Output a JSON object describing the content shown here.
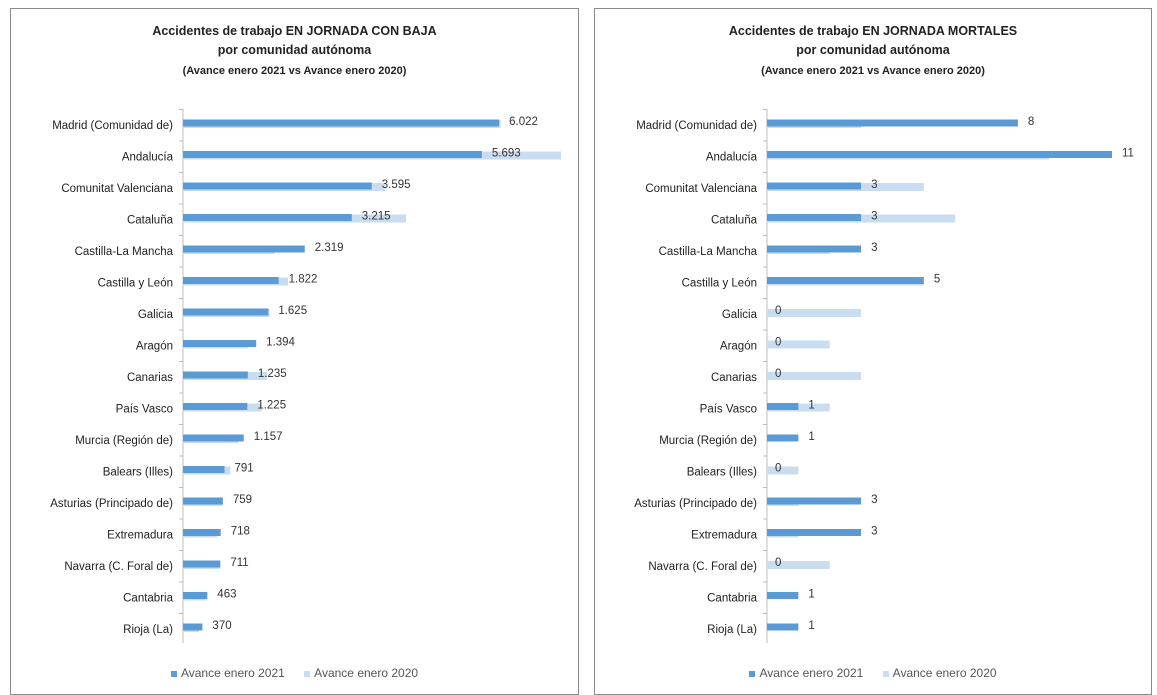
{
  "colors": {
    "series_2021": "#5b9bd5",
    "series_2020": "#c9dcf0"
  },
  "chart_data": [
    {
      "type": "bar",
      "orientation": "horizontal",
      "title": "Accidentes de trabajo EN JORNADA CON BAJA",
      "title_line2": "por comunidad autónoma",
      "subtitle": "(Avance enero 2021 vs Avance enero 2020)",
      "categories": [
        "Madrid (Comunidad de)",
        "Andalucía",
        "Comunitat Valenciana",
        "Cataluña",
        "Castilla-La Mancha",
        "Castilla y León",
        "Galicia",
        "Aragón",
        "Canarias",
        "País Vasco",
        "Murcia (Región de)",
        "Balears (Illes)",
        "Asturias (Principado de)",
        "Extremadura",
        "Navarra (C. Foral de)",
        "Cantabria",
        "Rioja (La)"
      ],
      "series": [
        {
          "name": "Avance enero 2021",
          "values": [
            6022,
            5693,
            3595,
            3215,
            2319,
            1822,
            1625,
            1394,
            1235,
            1225,
            1157,
            791,
            759,
            718,
            711,
            463,
            370
          ]
        },
        {
          "name": "Avance enero 2020",
          "values": [
            6050,
            7200,
            3850,
            4250,
            1750,
            2000,
            1650,
            1250,
            1600,
            1500,
            1050,
            900,
            750,
            650,
            700,
            450,
            300
          ]
        }
      ],
      "data_labels": [
        "6.022",
        "5.693",
        "3.595",
        "3.215",
        "2.319",
        "1.822",
        "1.625",
        "1.394",
        "1.235",
        "1.225",
        "1.157",
        "791",
        "759",
        "718",
        "711",
        "463",
        "370"
      ],
      "xlim": [
        0,
        7200
      ],
      "grid": false,
      "legend_position": "bottom"
    },
    {
      "type": "bar",
      "orientation": "horizontal",
      "title": "Accidentes de trabajo EN JORNADA MORTALES",
      "title_line2": "por comunidad autónoma",
      "subtitle": "(Avance enero 2021 vs Avance enero 2020)",
      "categories": [
        "Madrid (Comunidad de)",
        "Andalucía",
        "Comunitat Valenciana",
        "Cataluña",
        "Castilla-La Mancha",
        "Castilla y León",
        "Galicia",
        "Aragón",
        "Canarias",
        "País Vasco",
        "Murcia (Región de)",
        "Balears (Illes)",
        "Asturias (Principado de)",
        "Extremadura",
        "Navarra (C. Foral de)",
        "Cantabria",
        "Rioja (La)"
      ],
      "series": [
        {
          "name": "Avance enero 2021",
          "values": [
            8,
            11,
            3,
            3,
            3,
            5,
            0,
            0,
            0,
            1,
            1,
            0,
            3,
            3,
            0,
            1,
            1
          ]
        },
        {
          "name": "Avance enero 2020",
          "values": [
            3,
            9,
            5,
            6,
            2,
            5,
            3,
            2,
            3,
            2,
            0,
            1,
            1,
            1,
            2,
            0,
            0
          ]
        }
      ],
      "data_labels": [
        "8",
        "11",
        "3",
        "3",
        "3",
        "5",
        "0",
        "0",
        "0",
        "1",
        "1",
        "0",
        "3",
        "3",
        "0",
        "1",
        "1"
      ],
      "xlim": [
        0,
        11
      ],
      "grid": false,
      "legend_position": "bottom"
    }
  ]
}
